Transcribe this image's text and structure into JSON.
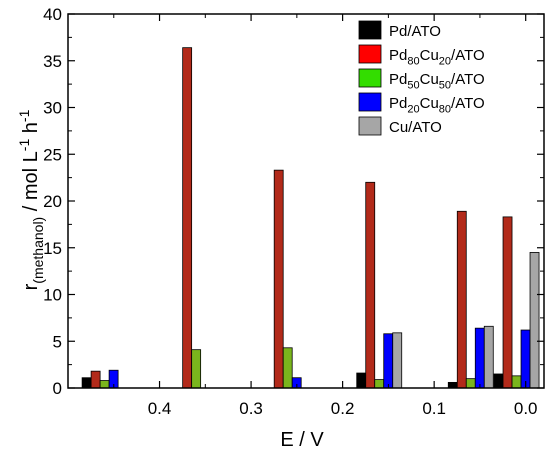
{
  "chart_data": {
    "type": "bar",
    "xlabel": "E / V",
    "ylabel_parts": [
      {
        "text": "r",
        "shift": "none"
      },
      {
        "text": "(methanol)",
        "shift": "sub"
      },
      {
        "text": " / mol L",
        "shift": "none"
      },
      {
        "text": "-1",
        "shift": "super"
      },
      {
        "text": " h",
        "shift": "none"
      },
      {
        "text": "-1",
        "shift": "super"
      }
    ],
    "xlim": [
      0.5,
      -0.02
    ],
    "ylim": [
      0,
      40
    ],
    "x_ticks": [
      {
        "value": 0.4,
        "label": "0.4"
      },
      {
        "value": 0.3,
        "label": "0.3"
      },
      {
        "value": 0.2,
        "label": "0.2"
      },
      {
        "value": 0.1,
        "label": "0.1"
      },
      {
        "value": 0.0,
        "label": "0.0"
      }
    ],
    "y_ticks": [
      {
        "value": 0,
        "label": "0"
      },
      {
        "value": 5,
        "label": "5"
      },
      {
        "value": 10,
        "label": "10"
      },
      {
        "value": 15,
        "label": "15"
      },
      {
        "value": 20,
        "label": "20"
      },
      {
        "value": 25,
        "label": "25"
      },
      {
        "value": 30,
        "label": "30"
      },
      {
        "value": 35,
        "label": "35"
      },
      {
        "value": 40,
        "label": "40"
      }
    ],
    "categories": [
      0.46,
      0.36,
      0.26,
      0.16,
      0.06,
      0.01
    ],
    "series": [
      {
        "name": "Pd/ATO",
        "name_parts": [
          {
            "text": "Pd/ATO",
            "shift": "none"
          }
        ],
        "color": "#000000",
        "values": [
          1.1,
          0,
          0,
          1.6,
          0.6,
          1.5
        ]
      },
      {
        "name": "Pd80Cu20/ATO",
        "name_parts": [
          {
            "text": "Pd",
            "shift": "none"
          },
          {
            "text": "80",
            "shift": "sub"
          },
          {
            "text": "Cu",
            "shift": "none"
          },
          {
            "text": "20",
            "shift": "sub"
          },
          {
            "text": "/ATO",
            "shift": "none"
          }
        ],
        "color": "#ff0000",
        "bar_color": "#b22a1a",
        "values": [
          1.8,
          36.4,
          23.3,
          22.0,
          18.9,
          18.3
        ]
      },
      {
        "name": "Pd50Cu50/ATO",
        "name_parts": [
          {
            "text": "Pd",
            "shift": "none"
          },
          {
            "text": "50",
            "shift": "sub"
          },
          {
            "text": "Cu",
            "shift": "none"
          },
          {
            "text": "50",
            "shift": "sub"
          },
          {
            "text": "/ATO",
            "shift": "none"
          }
        ],
        "color": "#33dd00",
        "bar_color": "#7ab51d",
        "values": [
          0.8,
          4.1,
          4.3,
          0.9,
          1.0,
          1.3
        ]
      },
      {
        "name": "Pd20Cu80/ATO",
        "name_parts": [
          {
            "text": "Pd",
            "shift": "none"
          },
          {
            "text": "20",
            "shift": "sub"
          },
          {
            "text": "Cu",
            "shift": "none"
          },
          {
            "text": "80",
            "shift": "sub"
          },
          {
            "text": "/ATO",
            "shift": "none"
          }
        ],
        "color": "#0000ff",
        "values": [
          1.9,
          0,
          1.1,
          5.8,
          6.4,
          6.2
        ]
      },
      {
        "name": "Cu/ATO",
        "name_parts": [
          {
            "text": "Cu/ATO",
            "shift": "none"
          }
        ],
        "color": "#a6a6a6",
        "values": [
          0,
          0,
          0,
          5.9,
          6.6,
          14.5
        ]
      }
    ],
    "legend_position": "top-right",
    "grid": false
  }
}
